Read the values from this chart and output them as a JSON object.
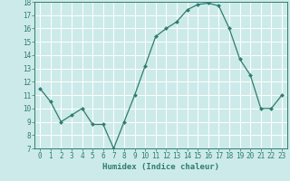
{
  "x": [
    0,
    1,
    2,
    3,
    4,
    5,
    6,
    7,
    8,
    9,
    10,
    11,
    12,
    13,
    14,
    15,
    16,
    17,
    18,
    19,
    20,
    21,
    22,
    23
  ],
  "y": [
    11.5,
    10.5,
    9.0,
    9.5,
    10.0,
    8.8,
    8.8,
    7.0,
    9.0,
    11.0,
    13.2,
    15.4,
    16.0,
    16.5,
    17.4,
    17.8,
    17.9,
    17.7,
    16.0,
    13.7,
    12.5,
    10.0,
    10.0,
    11.0
  ],
  "line_color": "#2e7d6e",
  "marker": "D",
  "marker_size": 2.0,
  "background_color": "#cdeaea",
  "grid_color": "#b0d8d8",
  "xlabel": "Humidex (Indice chaleur)",
  "ylim": [
    7,
    18
  ],
  "xlim": [
    -0.5,
    23.5
  ],
  "yticks": [
    7,
    8,
    9,
    10,
    11,
    12,
    13,
    14,
    15,
    16,
    17,
    18
  ],
  "xticks": [
    0,
    1,
    2,
    3,
    4,
    5,
    6,
    7,
    8,
    9,
    10,
    11,
    12,
    13,
    14,
    15,
    16,
    17,
    18,
    19,
    20,
    21,
    22,
    23
  ],
  "xlabel_fontsize": 6.5,
  "tick_fontsize": 5.5,
  "tick_color": "#2e7d6e",
  "label_color": "#2e7d6e",
  "spine_color": "#2e7d6e"
}
